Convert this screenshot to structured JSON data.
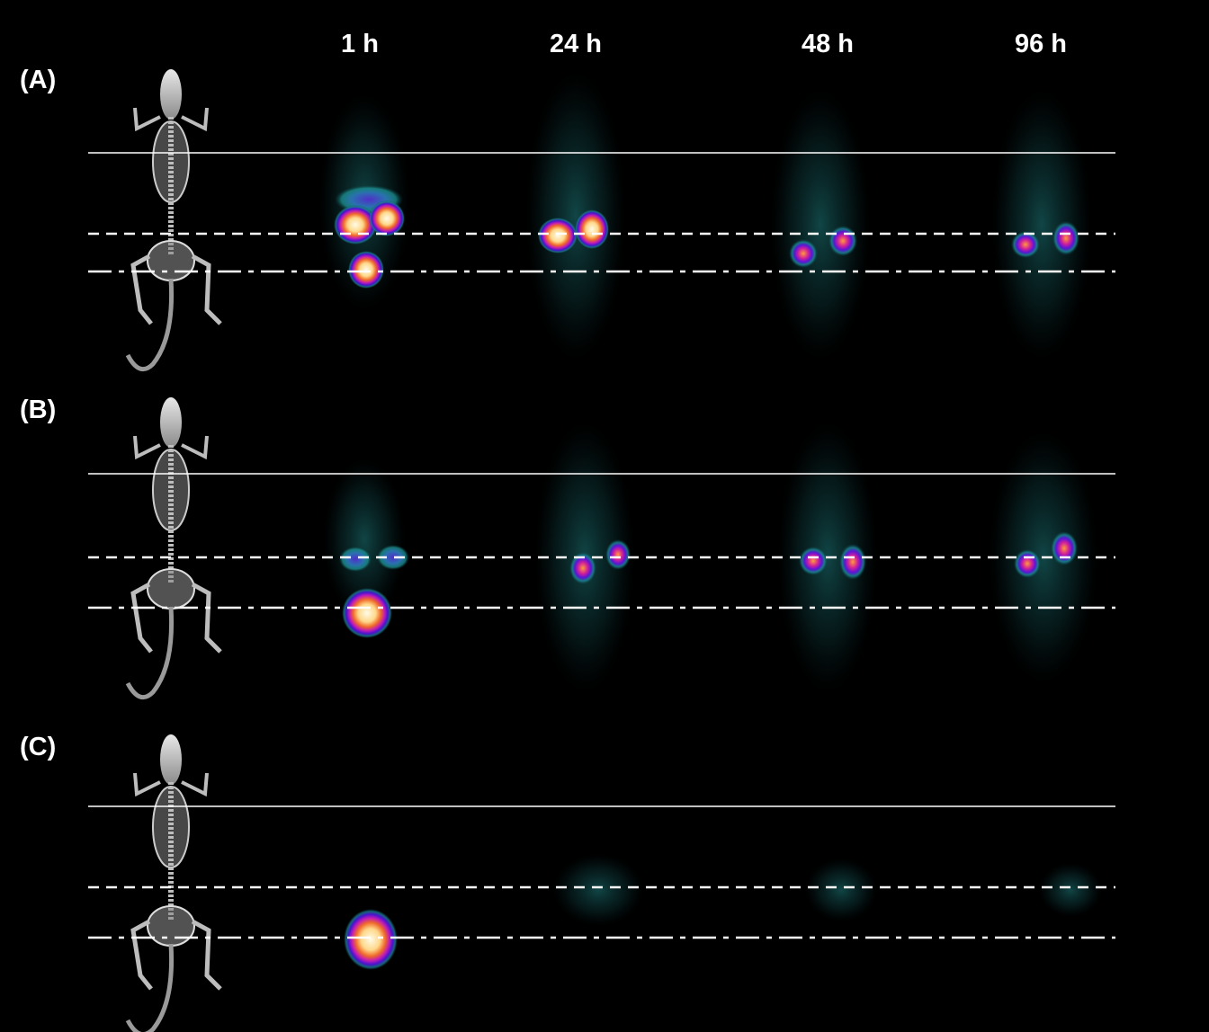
{
  "time_points": [
    "1 h",
    "24 h",
    "48 h",
    "96 h"
  ],
  "panels": [
    {
      "label": "(A)"
    },
    {
      "label": "(B)"
    },
    {
      "label": "(C)"
    }
  ]
}
